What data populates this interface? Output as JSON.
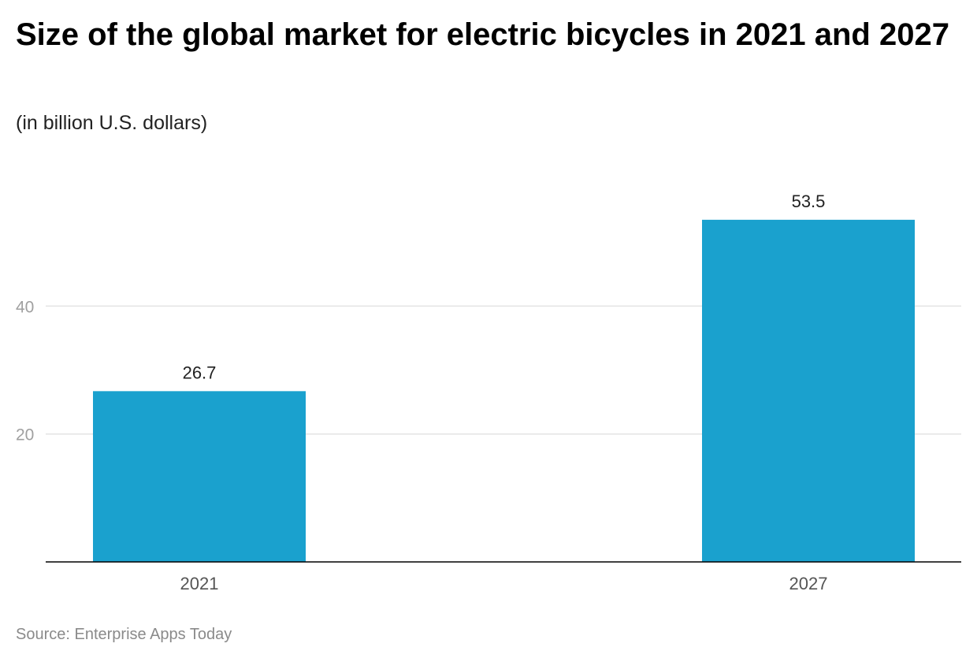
{
  "title": "Size of the global market for electric bicycles in 2021 and 2027",
  "subtitle": "(in billion U.S. dollars)",
  "source": "Source: Enterprise Apps Today",
  "colors": {
    "bar": "#1aa1ce",
    "gridline": "#e3e3e3",
    "axis": "#000000",
    "tick_label": "#a0a0a0",
    "category_label": "#555555",
    "value_label": "#222222"
  },
  "chart_data": {
    "type": "bar",
    "title": "Size of the global market for electric bicycles in 2021 and 2027",
    "subtitle": "(in billion U.S. dollars)",
    "categories": [
      "2021",
      "2027"
    ],
    "values": [
      26.7,
      53.5
    ],
    "value_labels": [
      "26.7",
      "53.5"
    ],
    "xlabel": "",
    "ylabel": "",
    "ylim": [
      0,
      66.3
    ],
    "yticks": [
      20,
      40
    ],
    "grid": true,
    "legend": "none"
  }
}
